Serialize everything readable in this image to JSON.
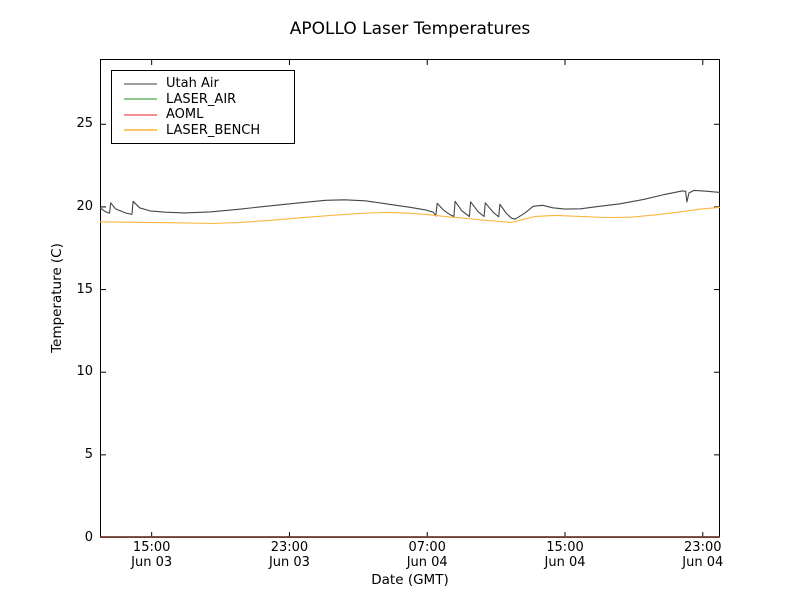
{
  "chart_data": {
    "type": "line",
    "title": "APOLLO Laser Temperatures",
    "xlabel": "Date (GMT)",
    "ylabel": "Temperature (C)",
    "grid": false,
    "legend_position": "upper left",
    "ylim": [
      0,
      28.92
    ],
    "x_hours_range": [
      0,
      36
    ],
    "yticks": [
      0,
      5,
      10,
      15,
      20,
      25
    ],
    "xticks": [
      {
        "hour": 3,
        "time": "15:00",
        "date": "Jun 03"
      },
      {
        "hour": 11,
        "time": "23:00",
        "date": "Jun 03"
      },
      {
        "hour": 19,
        "time": "07:00",
        "date": "Jun 04"
      },
      {
        "hour": 27,
        "time": "15:00",
        "date": "Jun 04"
      },
      {
        "hour": 35,
        "time": "23:00",
        "date": "Jun 04"
      }
    ],
    "axis_color": "#000000",
    "bottom_overlap_color": "#6b4134",
    "series": [
      {
        "name": "Utah Air",
        "color": "#454545",
        "legend_color": "#9e9e9e",
        "points": [
          [
            0,
            19.95
          ],
          [
            0.3,
            19.72
          ],
          [
            0.55,
            19.62
          ],
          [
            0.62,
            20.25
          ],
          [
            0.9,
            19.88
          ],
          [
            1.5,
            19.63
          ],
          [
            1.85,
            19.55
          ],
          [
            1.92,
            20.34
          ],
          [
            2.3,
            19.95
          ],
          [
            2.9,
            19.76
          ],
          [
            3.8,
            19.68
          ],
          [
            4.9,
            19.64
          ],
          [
            6.4,
            19.7
          ],
          [
            8.1,
            19.86
          ],
          [
            9.9,
            20.07
          ],
          [
            11.6,
            20.25
          ],
          [
            13.1,
            20.4
          ],
          [
            14.2,
            20.43
          ],
          [
            15.4,
            20.37
          ],
          [
            16.8,
            20.16
          ],
          [
            18,
            19.98
          ],
          [
            18.9,
            19.82
          ],
          [
            19.35,
            19.68
          ],
          [
            19.5,
            19.45
          ],
          [
            19.58,
            20.22
          ],
          [
            19.95,
            19.8
          ],
          [
            20.35,
            19.52
          ],
          [
            20.55,
            19.42
          ],
          [
            20.62,
            20.34
          ],
          [
            21,
            19.77
          ],
          [
            21.45,
            19.42
          ],
          [
            21.52,
            20.31
          ],
          [
            21.95,
            19.72
          ],
          [
            22.3,
            19.42
          ],
          [
            22.37,
            20.25
          ],
          [
            22.85,
            19.66
          ],
          [
            23.15,
            19.4
          ],
          [
            23.22,
            20.16
          ],
          [
            23.6,
            19.6
          ],
          [
            23.9,
            19.32
          ],
          [
            24.1,
            19.26
          ],
          [
            24.7,
            19.65
          ],
          [
            25.15,
            20.04
          ],
          [
            25.7,
            20.1
          ],
          [
            26.3,
            19.95
          ],
          [
            27,
            19.87
          ],
          [
            27.9,
            19.89
          ],
          [
            29,
            20.04
          ],
          [
            30.2,
            20.19
          ],
          [
            31.6,
            20.46
          ],
          [
            32.8,
            20.76
          ],
          [
            33.8,
            20.97
          ],
          [
            34,
            20.95
          ],
          [
            34.08,
            20.3
          ],
          [
            34.2,
            20.85
          ],
          [
            34.5,
            21
          ],
          [
            35.2,
            20.95
          ],
          [
            36,
            20.88
          ]
        ]
      },
      {
        "name": "LASER_AIR",
        "color": "#2e8b2e",
        "legend_color": "#8cc88c",
        "points": [
          [
            0,
            0
          ],
          [
            36,
            0
          ]
        ]
      },
      {
        "name": "AOML",
        "color": "#e04040",
        "legend_color": "#f49090",
        "points": [
          [
            0,
            0
          ],
          [
            36,
            0
          ]
        ]
      },
      {
        "name": "LASER_BENCH",
        "color": "#fcb63e",
        "legend_color": "#fcc565",
        "points": [
          [
            0,
            19.1
          ],
          [
            2,
            19.07
          ],
          [
            4.5,
            19.04
          ],
          [
            6.5,
            19
          ],
          [
            8,
            19.05
          ],
          [
            9.9,
            19.19
          ],
          [
            11.6,
            19.34
          ],
          [
            13.4,
            19.49
          ],
          [
            15.1,
            19.61
          ],
          [
            16.5,
            19.67
          ],
          [
            17.7,
            19.64
          ],
          [
            18.9,
            19.55
          ],
          [
            20,
            19.43
          ],
          [
            21.2,
            19.31
          ],
          [
            22.3,
            19.2
          ],
          [
            23.2,
            19.12
          ],
          [
            23.9,
            19.06
          ],
          [
            24.7,
            19.28
          ],
          [
            25.3,
            19.43
          ],
          [
            26.4,
            19.49
          ],
          [
            27.9,
            19.43
          ],
          [
            29.3,
            19.36
          ],
          [
            30.8,
            19.38
          ],
          [
            32.2,
            19.52
          ],
          [
            33.7,
            19.7
          ],
          [
            34.8,
            19.86
          ],
          [
            36,
            19.98
          ]
        ]
      }
    ]
  }
}
